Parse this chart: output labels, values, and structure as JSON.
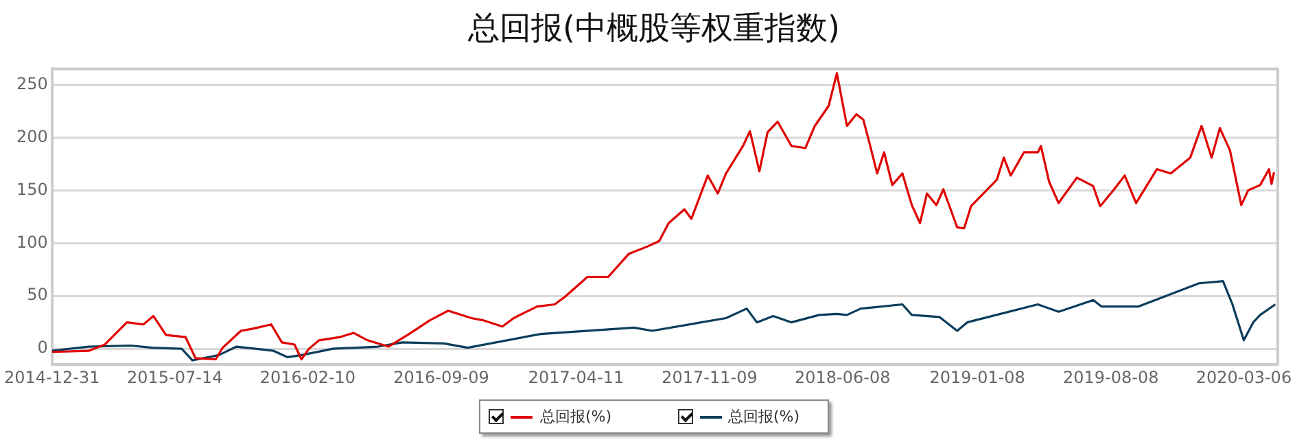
{
  "chart_data": {
    "type": "line",
    "title": "总回报(中概股等权重指数)",
    "xlim": [
      "2014-12-31",
      "2020-04-29"
    ],
    "xticks": [
      "2014-12-31",
      "2015-07-14",
      "2016-02-10",
      "2016-09-09",
      "2017-04-11",
      "2017-11-09",
      "2018-06-08",
      "2019-01-08",
      "2019-08-08",
      "2020-03-06"
    ],
    "ylim": [
      -15,
      265
    ],
    "yticks": [
      0,
      50,
      100,
      150,
      200,
      250
    ],
    "grid": "y",
    "legend": "bottom",
    "marker": "none",
    "line_style": "solid",
    "series": [
      {
        "name": "总回报(%)",
        "color": "#e00000",
        "x": [
          "2014-12-31",
          "2015-02-27",
          "2015-03-25",
          "2015-04-29",
          "2015-05-25",
          "2015-06-10",
          "2015-06-30",
          "2015-07-31",
          "2015-08-16",
          "2015-09-17",
          "2015-09-28",
          "2015-10-27",
          "2015-11-15",
          "2015-12-14",
          "2015-12-31",
          "2016-01-20",
          "2016-01-31",
          "2016-02-12",
          "2016-02-28",
          "2016-04-01",
          "2016-04-23",
          "2016-05-15",
          "2016-06-17",
          "2016-07-20",
          "2016-08-22",
          "2016-09-20",
          "2016-10-27",
          "2016-11-14",
          "2016-12-15",
          "2017-01-02",
          "2017-02-08",
          "2017-03-08",
          "2017-03-24",
          "2017-04-29",
          "2017-06-01",
          "2017-07-04",
          "2017-08-03",
          "2017-08-21",
          "2017-09-05",
          "2017-09-30",
          "2017-10-11",
          "2017-11-06",
          "2017-11-22",
          "2017-12-05",
          "2018-01-01",
          "2018-01-12",
          "2018-01-27",
          "2018-02-09",
          "2018-02-25",
          "2018-03-19",
          "2018-04-10",
          "2018-04-25",
          "2018-05-17",
          "2018-05-30",
          "2018-06-15",
          "2018-06-30",
          "2018-07-11",
          "2018-07-22",
          "2018-08-02",
          "2018-08-13",
          "2018-08-26",
          "2018-09-11",
          "2018-09-26",
          "2018-10-09",
          "2018-10-20",
          "2018-11-04",
          "2018-11-15",
          "2018-12-07",
          "2018-12-18",
          "2018-12-29",
          "2019-02-08",
          "2019-02-19",
          "2019-03-02",
          "2019-03-23",
          "2019-04-14",
          "2019-04-19",
          "2019-05-02",
          "2019-05-17",
          "2019-06-15",
          "2019-07-11",
          "2019-07-22",
          "2019-08-12",
          "2019-08-30",
          "2019-09-17",
          "2019-10-20",
          "2019-11-11",
          "2019-12-12",
          "2019-12-30",
          "2020-01-15",
          "2020-01-28",
          "2020-02-13",
          "2020-03-02",
          "2020-03-13",
          "2020-04-01",
          "2020-04-15",
          "2020-04-19",
          "2020-04-23"
        ],
        "values": [
          -3,
          -2,
          4,
          25,
          23,
          31,
          13,
          11,
          -9,
          -10,
          1,
          17,
          19,
          23,
          6,
          4,
          -10,
          0,
          8,
          11,
          15,
          8,
          2,
          14,
          27,
          36,
          29,
          27,
          21,
          29,
          40,
          42,
          49,
          68,
          68,
          90,
          97,
          102,
          119,
          132,
          123,
          164,
          147,
          166,
          192,
          206,
          168,
          205,
          215,
          192,
          190,
          211,
          230,
          261,
          211,
          222,
          217,
          192,
          166,
          186,
          155,
          166,
          136,
          119,
          147,
          136,
          151,
          115,
          114,
          135,
          160,
          181,
          164,
          186,
          186,
          192,
          158,
          138,
          162,
          154,
          135,
          150,
          164,
          138,
          170,
          166,
          181,
          211,
          181,
          209,
          188,
          136,
          150,
          155,
          170,
          156,
          167
        ]
      },
      {
        "name": "总回报(%)",
        "color": "#0b3d5c",
        "x": [
          "2014-12-31",
          "2015-02-27",
          "2015-05-05",
          "2015-06-08",
          "2015-07-25",
          "2015-08-11",
          "2015-09-22",
          "2015-10-20",
          "2015-12-18",
          "2016-01-09",
          "2016-01-31",
          "2016-03-21",
          "2016-06-01",
          "2016-07-09",
          "2016-09-13",
          "2016-10-21",
          "2017-02-14",
          "2017-07-12",
          "2017-08-10",
          "2017-12-05",
          "2018-01-07",
          "2018-01-23",
          "2018-02-18",
          "2018-03-19",
          "2018-05-02",
          "2018-05-30",
          "2018-06-15",
          "2018-07-07",
          "2018-09-11",
          "2018-09-26",
          "2018-11-09",
          "2018-12-07",
          "2018-12-23",
          "2019-04-14",
          "2019-05-17",
          "2019-07-11",
          "2019-07-24",
          "2019-09-21",
          "2019-12-26",
          "2020-02-02",
          "2020-02-17",
          "2020-03-06",
          "2020-03-21",
          "2020-04-01",
          "2020-04-25"
        ],
        "values": [
          -2,
          2,
          3,
          1,
          0,
          -11,
          -6,
          2,
          -2,
          -8,
          -6,
          0,
          2,
          6,
          5,
          1,
          14,
          20,
          17,
          29,
          38,
          25,
          31,
          25,
          32,
          33,
          32,
          38,
          42,
          32,
          30,
          17,
          25,
          42,
          35,
          46,
          40,
          40,
          62,
          64,
          42,
          8,
          25,
          32,
          42
        ]
      }
    ]
  }
}
